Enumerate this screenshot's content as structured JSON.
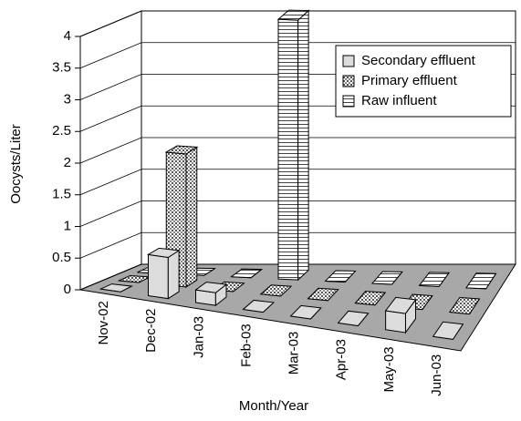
{
  "chart_data": {
    "type": "bar3d",
    "y_label": "Oocysts/Liter",
    "x_label": "Month/Year",
    "categories": [
      "Nov-02",
      "Dec-02",
      "Jan-03",
      "Feb-03",
      "Mar-03",
      "Apr-03",
      "May-03",
      "Jun-03"
    ],
    "series": [
      {
        "name": "Secondary effluent",
        "color": "#dcdcdc",
        "values": [
          0,
          0.65,
          0.2,
          0,
          0,
          0,
          0.3,
          0
        ]
      },
      {
        "name": "Primary effluent",
        "color": "#b0b0b0",
        "values": [
          0,
          2.1,
          0,
          0,
          0,
          0,
          0,
          0
        ]
      },
      {
        "name": "Raw influent",
        "color": "#f0f0f0",
        "values": [
          0,
          0,
          0,
          4.1,
          0,
          0,
          0,
          0
        ]
      }
    ],
    "ylim": [
      0,
      4
    ],
    "yticks": [
      0,
      0.5,
      1,
      1.5,
      2,
      2.5,
      3,
      3.5,
      4
    ],
    "grid": true
  }
}
